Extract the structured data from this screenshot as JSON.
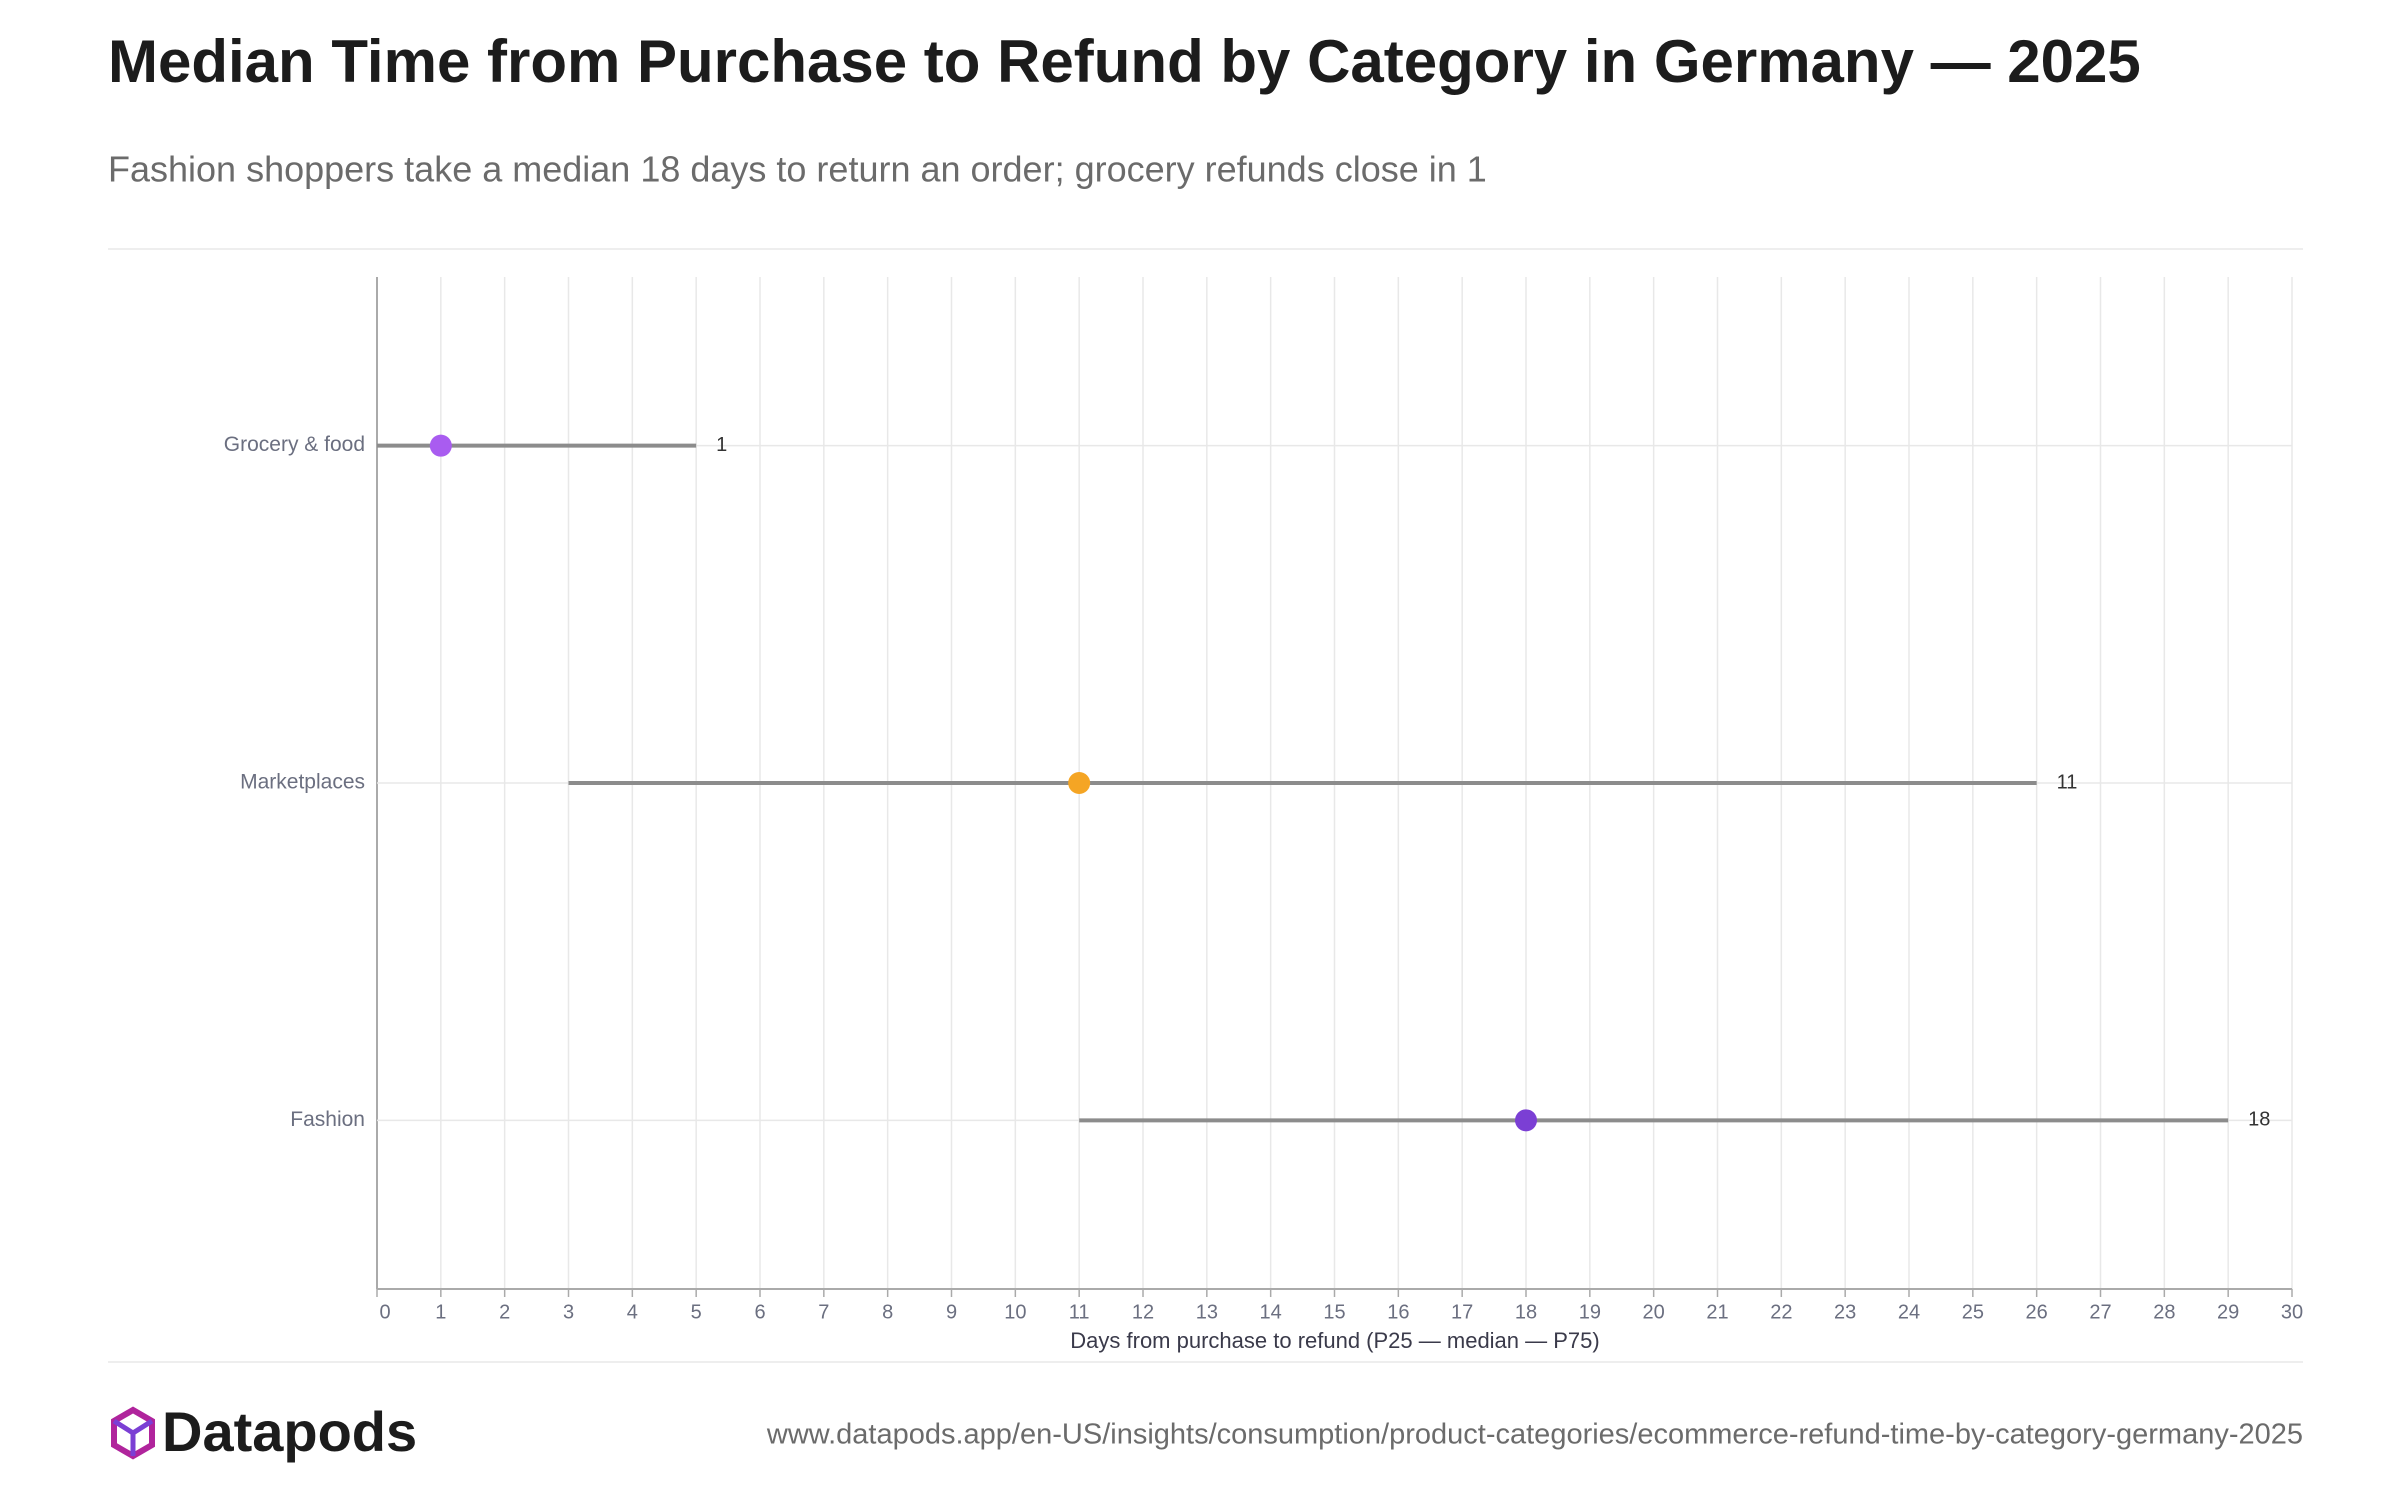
{
  "chart_data": {
    "type": "range",
    "title": "Median Time from Purchase to Refund by Category in Germany — 2025",
    "subtitle": "Fashion shoppers take a median 18 days to return an order; grocery refunds close in 1",
    "x_label": "Days from purchase to refund (P25 — median — P75)",
    "categories": [
      "Grocery & food",
      "Marketplaces",
      "Fashion"
    ],
    "p25": [
      0,
      3,
      11
    ],
    "median": [
      1,
      11,
      18
    ],
    "p75": [
      5,
      26,
      29
    ],
    "colors": [
      "#a95cf0",
      "#f5a524",
      "#7b3fd4"
    ],
    "range_color": "#8c8c8c",
    "xlim": [
      0,
      30
    ],
    "xticks": [
      0,
      1,
      2,
      3,
      4,
      5,
      6,
      7,
      8,
      9,
      10,
      11,
      12,
      13,
      14,
      15,
      16,
      17,
      18,
      19,
      20,
      21,
      22,
      23,
      24,
      25,
      26,
      27,
      28,
      29,
      30
    ],
    "grid": true
  },
  "footer": {
    "brand": "Datapods",
    "url": "www.datapods.app/en-US/insights/consumption/product-categories/ecommerce-refund-time-by-category-germany-2025"
  }
}
